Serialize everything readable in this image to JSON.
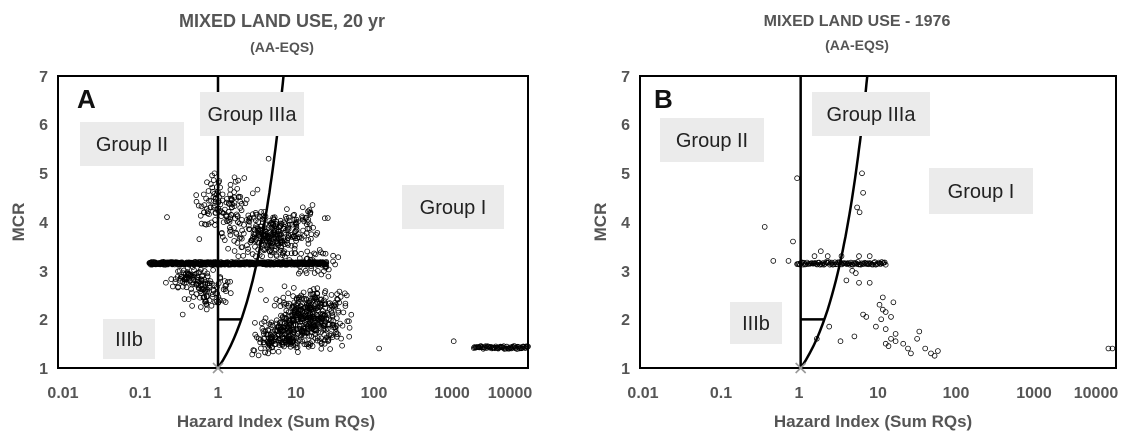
{
  "chart_data": [
    {
      "id": "A",
      "type": "scatter",
      "title": "MIXED LAND USE, 20 yr",
      "subtitle": "(AA-EQS)",
      "panel_label": "A",
      "xlabel": "Hazard Index (Sum RQs)",
      "ylabel": "MCR",
      "x_scale": "log",
      "xlim": [
        0.01,
        10000
      ],
      "ylim": [
        1,
        7
      ],
      "x_ticks": [
        "0.01",
        "0.1",
        "1",
        "10",
        "100",
        "1000",
        "10000"
      ],
      "y_ticks": [
        "1",
        "2",
        "3",
        "4",
        "5",
        "6",
        "7"
      ],
      "regions": [
        {
          "label": "Group II",
          "x": 0.13,
          "y": 5.5
        },
        {
          "label": "Group IIIa",
          "x": 3.3,
          "y": 6.2
        },
        {
          "label": "Group I",
          "x": 2000,
          "y": 3.9
        },
        {
          "label": "IIIb",
          "x": 0.17,
          "y": 1.65
        }
      ],
      "scatter_seed": 7,
      "clusters": [
        {
          "n": 260,
          "x": [
            0.9,
            25
          ],
          "y": [
            3.2,
            4.3
          ]
        },
        {
          "n": 120,
          "x": [
            0.35,
            4
          ],
          "y": [
            3.6,
            5.1
          ]
        },
        {
          "n": 90,
          "x": [
            0.3,
            2
          ],
          "y": [
            2.1,
            3.1
          ]
        },
        {
          "n": 420,
          "x": [
            3,
            70
          ],
          "y": [
            1.3,
            2.7
          ]
        },
        {
          "n": 140,
          "x": [
            2,
            15
          ],
          "y": [
            1.2,
            2.0
          ]
        },
        {
          "n": 60,
          "x": [
            0.2,
            0.9
          ],
          "y": [
            2.6,
            3.1
          ]
        },
        {
          "n": 45,
          "x": [
            5,
            30
          ],
          "y": [
            3.5,
            4.4
          ]
        },
        {
          "n": 40,
          "x": [
            8,
            40
          ],
          "y": [
            2.8,
            3.5
          ]
        }
      ],
      "dense_rows": [
        {
          "y": 3.15,
          "x_from": 0.13,
          "x_to": 25,
          "n": 520
        },
        {
          "y": 1.42,
          "x_from": 2000,
          "x_to": 10000,
          "n": 70
        }
      ],
      "extra_points": [
        {
          "x": 120,
          "y": 1.4
        },
        {
          "x": 1100,
          "y": 1.55
        },
        {
          "x": 0.9,
          "y": 5.0
        },
        {
          "x": 4.5,
          "y": 5.3
        },
        {
          "x": 0.22,
          "y": 4.1
        },
        {
          "x": 0.35,
          "y": 2.1
        }
      ]
    },
    {
      "id": "B",
      "type": "scatter",
      "title": "MIXED LAND USE - 1976",
      "subtitle": "(AA-EQS)",
      "panel_label": "B",
      "xlabel": "Hazard Index (Sum RQs)",
      "ylabel": "MCR",
      "x_scale": "log",
      "xlim": [
        0.01,
        10000
      ],
      "ylim": [
        1,
        7
      ],
      "x_ticks": [
        "0.01",
        "0.1",
        "1",
        "10",
        "100",
        "1000",
        "10000"
      ],
      "y_ticks": [
        "1",
        "2",
        "3",
        "4",
        "5",
        "6",
        "7"
      ],
      "regions": [
        {
          "label": "Group II",
          "x": 0.13,
          "y": 5.5
        },
        {
          "label": "Group IIIa",
          "x": 3.3,
          "y": 6.2
        },
        {
          "label": "Group I",
          "x": 100,
          "y": 3.75
        },
        {
          "label": "IIIb",
          "x": 0.7,
          "y": 2.0
        }
      ],
      "scatter_seed": 11,
      "clusters": [],
      "dense_rows": [
        {
          "y": 3.15,
          "x_from": 0.9,
          "x_to": 12,
          "n": 90
        }
      ],
      "extra_points": [
        {
          "x": 0.9,
          "y": 4.9
        },
        {
          "x": 0.35,
          "y": 3.9
        },
        {
          "x": 0.8,
          "y": 3.6
        },
        {
          "x": 0.45,
          "y": 3.2
        },
        {
          "x": 0.7,
          "y": 3.2
        },
        {
          "x": 1.5,
          "y": 3.3
        },
        {
          "x": 1.8,
          "y": 3.4
        },
        {
          "x": 2.2,
          "y": 3.3
        },
        {
          "x": 3.3,
          "y": 3.3
        },
        {
          "x": 5.5,
          "y": 3.3
        },
        {
          "x": 7.5,
          "y": 3.3
        },
        {
          "x": 4.5,
          "y": 3.0
        },
        {
          "x": 5.0,
          "y": 2.95
        },
        {
          "x": 3.8,
          "y": 2.8
        },
        {
          "x": 5.5,
          "y": 2.75
        },
        {
          "x": 7.5,
          "y": 2.75
        },
        {
          "x": 11,
          "y": 2.45
        },
        {
          "x": 10,
          "y": 2.3
        },
        {
          "x": 11,
          "y": 2.2
        },
        {
          "x": 12,
          "y": 2.15
        },
        {
          "x": 14,
          "y": 2.05
        },
        {
          "x": 10.5,
          "y": 2.0
        },
        {
          "x": 15,
          "y": 2.35
        },
        {
          "x": 6.2,
          "y": 2.1
        },
        {
          "x": 6.8,
          "y": 2.05
        },
        {
          "x": 9,
          "y": 1.85
        },
        {
          "x": 12,
          "y": 1.8
        },
        {
          "x": 16,
          "y": 1.7
        },
        {
          "x": 16,
          "y": 1.55
        },
        {
          "x": 20,
          "y": 1.5
        },
        {
          "x": 23,
          "y": 1.4
        },
        {
          "x": 25,
          "y": 1.3
        },
        {
          "x": 30,
          "y": 1.6
        },
        {
          "x": 32,
          "y": 1.75
        },
        {
          "x": 38,
          "y": 1.4
        },
        {
          "x": 45,
          "y": 1.3
        },
        {
          "x": 50,
          "y": 1.25
        },
        {
          "x": 55,
          "y": 1.35
        },
        {
          "x": 13,
          "y": 1.45
        },
        {
          "x": 14,
          "y": 1.6
        },
        {
          "x": 12,
          "y": 1.5
        },
        {
          "x": 4.8,
          "y": 1.65
        },
        {
          "x": 3.2,
          "y": 1.55
        },
        {
          "x": 2.3,
          "y": 1.85
        },
        {
          "x": 1.6,
          "y": 1.6
        },
        {
          "x": 5.2,
          "y": 4.3
        },
        {
          "x": 5.6,
          "y": 4.2
        },
        {
          "x": 6.2,
          "y": 4.6
        },
        {
          "x": 6.0,
          "y": 5.0
        },
        {
          "x": 8000,
          "y": 1.4
        },
        {
          "x": 9000,
          "y": 1.4
        }
      ]
    }
  ]
}
